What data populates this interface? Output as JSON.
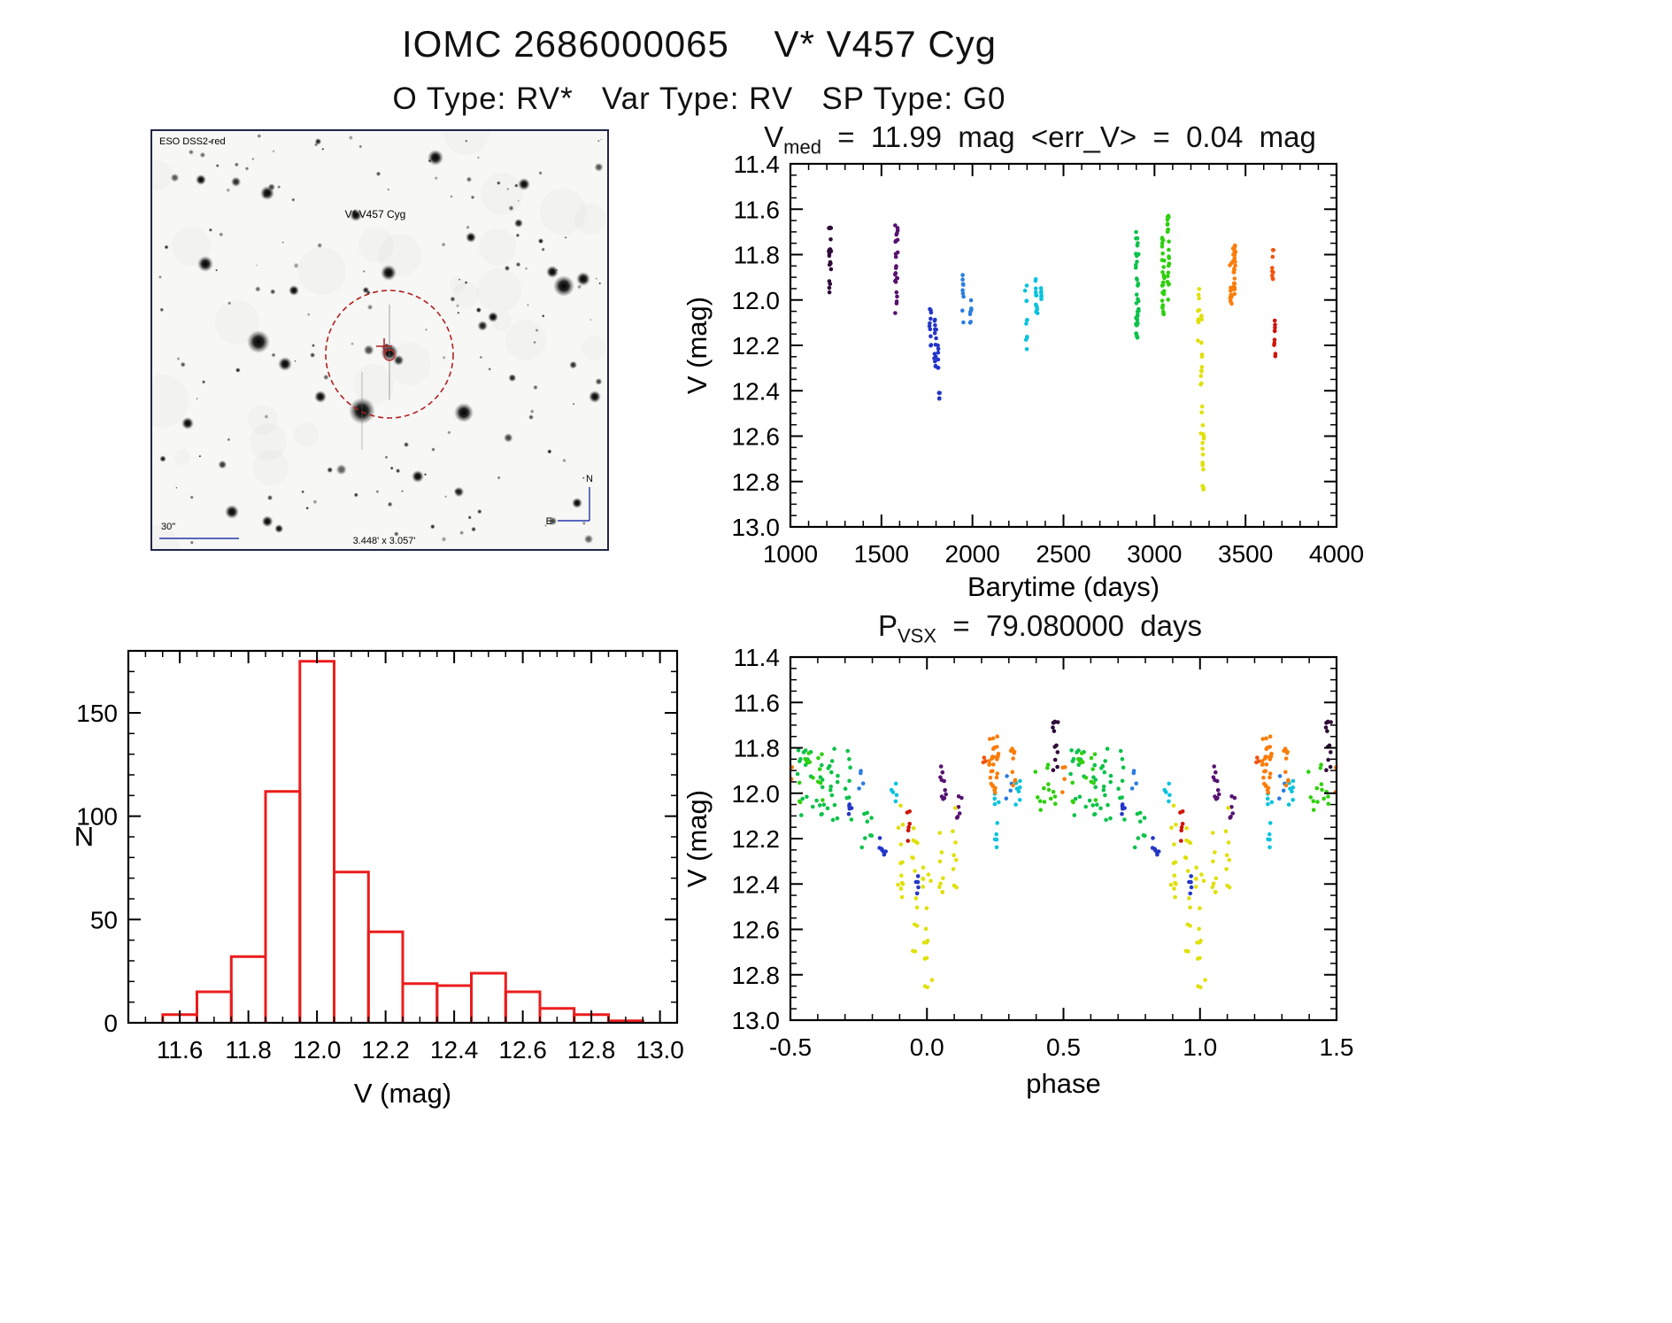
{
  "header": {
    "title": "IOMC 2686000065    V* V457 Cyg",
    "subtitle": "O Type: RV*   Var Type: RV   SP Type: G0"
  },
  "finder": {
    "survey_label": "ESO DSS2-red",
    "target_label": "V* V457 Cyg",
    "scale_label": "30\"",
    "fov_label": "3.448' x 3.057'",
    "compass_n": "N",
    "compass_e": "E"
  },
  "chart_data": [
    {
      "type": "scatter",
      "title": "V_med = 11.99 mag <err_V> = 0.04 mag",
      "title_main": "V",
      "title_sub": "med",
      "title_rest": "  =  11.99  mag  <err_V>  =  0.04  mag",
      "xlabel": "Barytime (days)",
      "ylabel": "V (mag)",
      "xlim": [
        1000,
        4000
      ],
      "ylim": [
        11.4,
        13.0
      ],
      "y_axis_inverted": true,
      "xticks": [
        1000,
        1500,
        2000,
        2500,
        3000,
        3500,
        4000
      ],
      "xtick_labels": [
        "1000",
        "1500",
        "2000",
        "2500",
        "3000",
        "3500",
        "4000"
      ],
      "yticks": [
        11.4,
        11.6,
        11.8,
        12.0,
        12.2,
        12.4,
        12.6,
        12.8,
        13.0
      ],
      "ytick_labels": [
        "11.4",
        "11.6",
        "11.8",
        "12.0",
        "12.2",
        "12.4",
        "12.6",
        "12.8",
        "13.0"
      ],
      "x_minor": 100,
      "y_minor": 0.05,
      "clusters": [
        {
          "x": 1218,
          "dx": 14,
          "vlo": 11.68,
          "vhi": 12.03,
          "n": 20,
          "color": "#2e0b38",
          "b": 1.6
        },
        {
          "x": 1582,
          "dx": 16,
          "vlo": 11.67,
          "vhi": 12.06,
          "n": 24,
          "color": "#561270",
          "b": 1.4
        },
        {
          "x": 1768,
          "dx": 10,
          "vlo": 12.02,
          "vhi": 12.22,
          "n": 10,
          "color": "#2336c8",
          "b": 1
        },
        {
          "x": 1796,
          "dx": 12,
          "vlo": 12.08,
          "vhi": 12.32,
          "n": 14,
          "color": "#2336c8",
          "b": 1
        },
        {
          "x": 1812,
          "dx": 6,
          "vlo": 12.18,
          "vhi": 12.3,
          "n": 6,
          "color": "#2336c8",
          "b": 1
        },
        {
          "x": 1818,
          "dx": 6,
          "vlo": 12.38,
          "vhi": 12.47,
          "n": 5,
          "color": "#2336c8",
          "b": 1
        },
        {
          "x": 1948,
          "dx": 10,
          "vlo": 11.88,
          "vhi": 12.12,
          "n": 9,
          "color": "#2b7de0",
          "b": 1
        },
        {
          "x": 1990,
          "dx": 8,
          "vlo": 11.97,
          "vhi": 12.12,
          "n": 7,
          "color": "#2b7de0",
          "b": 1
        },
        {
          "x": 2295,
          "dx": 14,
          "vlo": 11.93,
          "vhi": 12.22,
          "n": 11,
          "color": "#09c3de",
          "b": 1.3
        },
        {
          "x": 2352,
          "dx": 12,
          "vlo": 11.9,
          "vhi": 12.08,
          "n": 13,
          "color": "#09c3de",
          "b": 1
        },
        {
          "x": 2378,
          "dx": 8,
          "vlo": 11.93,
          "vhi": 12.05,
          "n": 6,
          "color": "#09c3de",
          "b": 1
        },
        {
          "x": 2905,
          "dx": 16,
          "vlo": 11.7,
          "vhi": 12.18,
          "n": 40,
          "color": "#0cc24a",
          "b": 1.2
        },
        {
          "x": 3048,
          "dx": 14,
          "vlo": 11.72,
          "vhi": 12.1,
          "n": 26,
          "color": "#2fd00e",
          "b": 1.2
        },
        {
          "x": 3075,
          "dx": 12,
          "vlo": 11.62,
          "vhi": 12.02,
          "n": 22,
          "color": "#2fd00e",
          "b": 1.1
        },
        {
          "x": 3242,
          "dx": 10,
          "vlo": 11.93,
          "vhi": 12.18,
          "n": 9,
          "color": "#e0e00a",
          "b": 1
        },
        {
          "x": 3258,
          "dx": 10,
          "vlo": 12.05,
          "vhi": 12.6,
          "n": 16,
          "color": "#e0e00a",
          "b": 1
        },
        {
          "x": 3268,
          "dx": 8,
          "vlo": 12.3,
          "vhi": 12.86,
          "n": 14,
          "color": "#e0e00a",
          "b": 0.8
        },
        {
          "x": 3418,
          "dx": 12,
          "vlo": 11.83,
          "vhi": 12.02,
          "n": 12,
          "color": "#fa7d0a",
          "b": 1
        },
        {
          "x": 3438,
          "dx": 14,
          "vlo": 11.76,
          "vhi": 11.98,
          "n": 26,
          "color": "#fa7d0a",
          "b": 1.2
        },
        {
          "x": 3650,
          "dx": 8,
          "vlo": 11.78,
          "vhi": 11.93,
          "n": 9,
          "color": "#f4530e",
          "b": 1
        },
        {
          "x": 3660,
          "dx": 8,
          "vlo": 12.05,
          "vhi": 12.26,
          "n": 10,
          "color": "#cf1408",
          "b": 1
        }
      ]
    },
    {
      "type": "histogram",
      "title": "",
      "xlabel": "V (mag)",
      "ylabel": "N",
      "xlim": [
        11.45,
        13.05
      ],
      "ylim": [
        0,
        180
      ],
      "xticks": [
        11.6,
        11.8,
        12.0,
        12.2,
        12.4,
        12.6,
        12.8,
        13.0
      ],
      "xtick_labels": [
        "11.6",
        "11.8",
        "12.0",
        "12.2",
        "12.4",
        "12.6",
        "12.8",
        "13.0"
      ],
      "yticks": [
        0,
        50,
        100,
        150
      ],
      "ytick_labels": [
        "0",
        "50",
        "100",
        "150"
      ],
      "x_minor": 0.05,
      "y_minor": 10,
      "bin_start": 11.55,
      "bin_width": 0.1,
      "counts": [
        4,
        15,
        32,
        112,
        175,
        73,
        44,
        19,
        18,
        24,
        15,
        7,
        4,
        1
      ],
      "color": "#ec1c1c"
    },
    {
      "type": "scatter",
      "periodic": true,
      "title": "P_VSX = 79.080000 days",
      "title_main": "P",
      "title_sub": "VSX",
      "title_rest": "  =  79.080000  days",
      "xlabel": "phase",
      "ylabel": "V (mag)",
      "xlim": [
        -0.5,
        1.5
      ],
      "ylim": [
        11.4,
        13.0
      ],
      "y_axis_inverted": true,
      "xticks": [
        -0.5,
        0.0,
        0.5,
        1.0,
        1.5
      ],
      "xtick_labels": [
        "-0.5",
        "0.0",
        "0.5",
        "1.0",
        "1.5"
      ],
      "yticks": [
        11.4,
        11.6,
        11.8,
        12.0,
        12.2,
        12.4,
        12.6,
        12.8,
        13.0
      ],
      "ytick_labels": [
        "11.4",
        "11.6",
        "11.8",
        "12.0",
        "12.2",
        "12.4",
        "12.6",
        "12.8",
        "13.0"
      ],
      "x_minor": 0.1,
      "y_minor": 0.05,
      "clusters": [
        {
          "x": 0.47,
          "dx": 0.02,
          "vlo": 11.68,
          "vhi": 11.96,
          "n": 12,
          "color": "#2e0b38",
          "b": 1.3
        },
        {
          "x": 0.06,
          "dx": 0.03,
          "vlo": 11.88,
          "vhi": 12.12,
          "n": 10,
          "color": "#561270",
          "b": 1
        },
        {
          "x": 0.12,
          "dx": 0.02,
          "vlo": 11.95,
          "vhi": 12.12,
          "n": 6,
          "color": "#561270",
          "b": 1
        },
        {
          "x": 0.72,
          "dx": 0.03,
          "vlo": 12.0,
          "vhi": 12.12,
          "n": 5,
          "color": "#2336c8",
          "b": 1
        },
        {
          "x": 0.84,
          "dx": 0.03,
          "vlo": 12.18,
          "vhi": 12.33,
          "n": 8,
          "color": "#2336c8",
          "b": 1
        },
        {
          "x": 0.965,
          "dx": 0.02,
          "vlo": 12.36,
          "vhi": 12.46,
          "n": 5,
          "color": "#2336c8",
          "b": 1
        },
        {
          "x": 0.3,
          "dx": 0.02,
          "vlo": 11.92,
          "vhi": 12.05,
          "n": 4,
          "color": "#2b7de0",
          "b": 1
        },
        {
          "x": 0.76,
          "dx": 0.02,
          "vlo": 11.9,
          "vhi": 12.02,
          "n": 4,
          "color": "#2b7de0",
          "b": 1
        },
        {
          "x": 0.255,
          "dx": 0.025,
          "vlo": 12.0,
          "vhi": 12.25,
          "n": 9,
          "color": "#09c3de",
          "b": 1
        },
        {
          "x": 0.335,
          "dx": 0.02,
          "vlo": 11.93,
          "vhi": 12.06,
          "n": 7,
          "color": "#09c3de",
          "b": 1
        },
        {
          "x": 0.88,
          "dx": 0.02,
          "vlo": 11.9,
          "vhi": 12.05,
          "n": 5,
          "color": "#09c3de",
          "b": 1
        },
        {
          "x": 0.62,
          "dx": 0.22,
          "vlo": 11.8,
          "vhi": 12.12,
          "n": 45,
          "color": "#0cc24a",
          "b": 1.1
        },
        {
          "x": 0.44,
          "dx": 0.1,
          "vlo": 11.85,
          "vhi": 12.1,
          "n": 14,
          "color": "#2fd00e",
          "b": 1
        },
        {
          "x": 0.57,
          "dx": 0.1,
          "vlo": 11.8,
          "vhi": 12.05,
          "n": 16,
          "color": "#2fd00e",
          "b": 1
        },
        {
          "x": 0.78,
          "dx": 0.04,
          "vlo": 12.05,
          "vhi": 12.25,
          "n": 8,
          "color": "#0cc24a",
          "b": 1
        },
        {
          "x": 0.9,
          "dx": 0.025,
          "vlo": 12.0,
          "vhi": 12.5,
          "n": 12,
          "color": "#e0e00a",
          "b": 0.9
        },
        {
          "x": 0.955,
          "dx": 0.02,
          "vlo": 12.1,
          "vhi": 12.7,
          "n": 13,
          "color": "#e0e00a",
          "b": 0.9
        },
        {
          "x": 0.0,
          "dx": 0.04,
          "vlo": 12.25,
          "vhi": 12.86,
          "n": 16,
          "color": "#e0e00a",
          "b": 0.85
        },
        {
          "x": 0.055,
          "dx": 0.02,
          "vlo": 12.15,
          "vhi": 12.55,
          "n": 8,
          "color": "#e0e00a",
          "b": 1
        },
        {
          "x": 0.1,
          "dx": 0.02,
          "vlo": 12.0,
          "vhi": 12.42,
          "n": 8,
          "color": "#e0e00a",
          "b": 1
        },
        {
          "x": 0.245,
          "dx": 0.035,
          "vlo": 11.75,
          "vhi": 12.0,
          "n": 30,
          "color": "#fa7d0a",
          "b": 1.3
        },
        {
          "x": 0.315,
          "dx": 0.02,
          "vlo": 11.8,
          "vhi": 11.97,
          "n": 10,
          "color": "#fa7d0a",
          "b": 1
        },
        {
          "x": 0.5,
          "dx": 0.015,
          "vlo": 11.88,
          "vhi": 12.0,
          "n": 4,
          "color": "#fa7d0a",
          "b": 1
        },
        {
          "x": 0.935,
          "dx": 0.015,
          "vlo": 12.08,
          "vhi": 12.25,
          "n": 6,
          "color": "#cf1408",
          "b": 1
        },
        {
          "x": 0.21,
          "dx": 0.01,
          "vlo": 11.8,
          "vhi": 11.92,
          "n": 3,
          "color": "#f4530e",
          "b": 1
        }
      ]
    }
  ]
}
